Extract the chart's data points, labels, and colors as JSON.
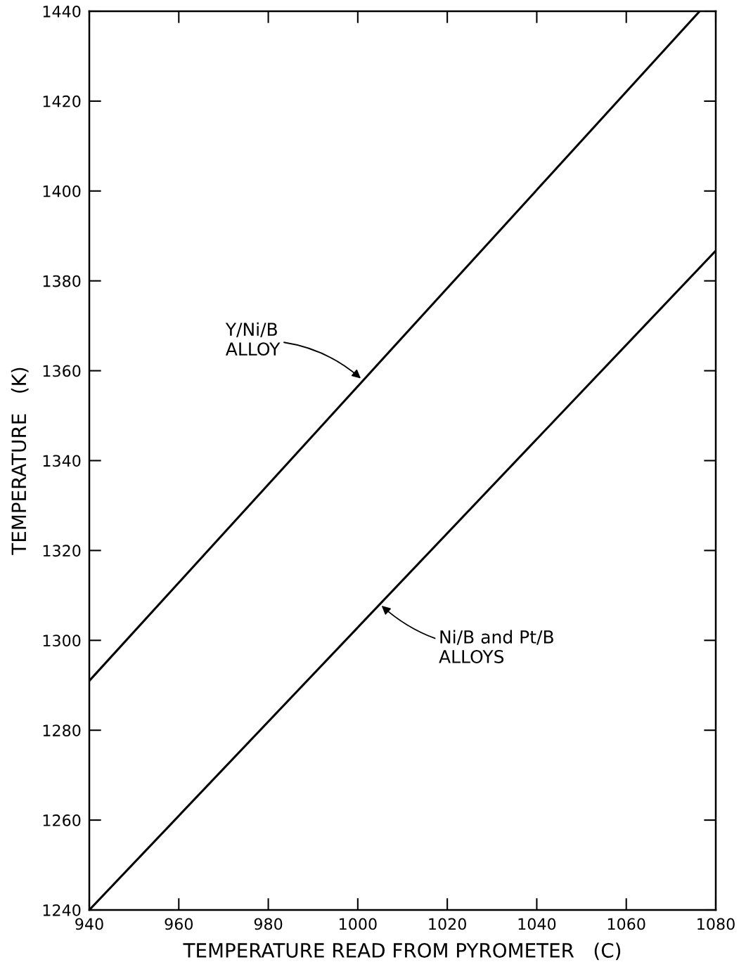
{
  "chart_data": {
    "type": "line",
    "xlabel": "TEMPERATURE READ FROM PYROMETER   (C)",
    "ylabel": "TEMPERATURE   (K)",
    "series": [
      {
        "color": "#000000",
        "x": [
          940,
          1076.4
        ],
        "values": [
          1291,
          1440
        ]
      },
      {
        "color": "#000000",
        "x": [
          940,
          1080
        ],
        "values": [
          1240,
          1386.7
        ]
      }
    ],
    "annotations": [
      {
        "text": "Y/Ni/B\nALLOY",
        "x": 1001,
        "y": 1358
      },
      {
        "text": "Ni/B and Pt/B\nALLOYS",
        "x": 1005,
        "y": 1308
      }
    ],
    "xlim": [
      940,
      1080
    ],
    "ylim": [
      1240,
      1440
    ],
    "xticks": [
      940,
      960,
      980,
      1000,
      1020,
      1040,
      1060,
      1080
    ],
    "yticks": [
      1240,
      1260,
      1280,
      1300,
      1320,
      1340,
      1360,
      1380,
      1400,
      1420,
      1440
    ],
    "grid": false,
    "legend": false,
    "marker": "none",
    "line_style": "solid"
  }
}
